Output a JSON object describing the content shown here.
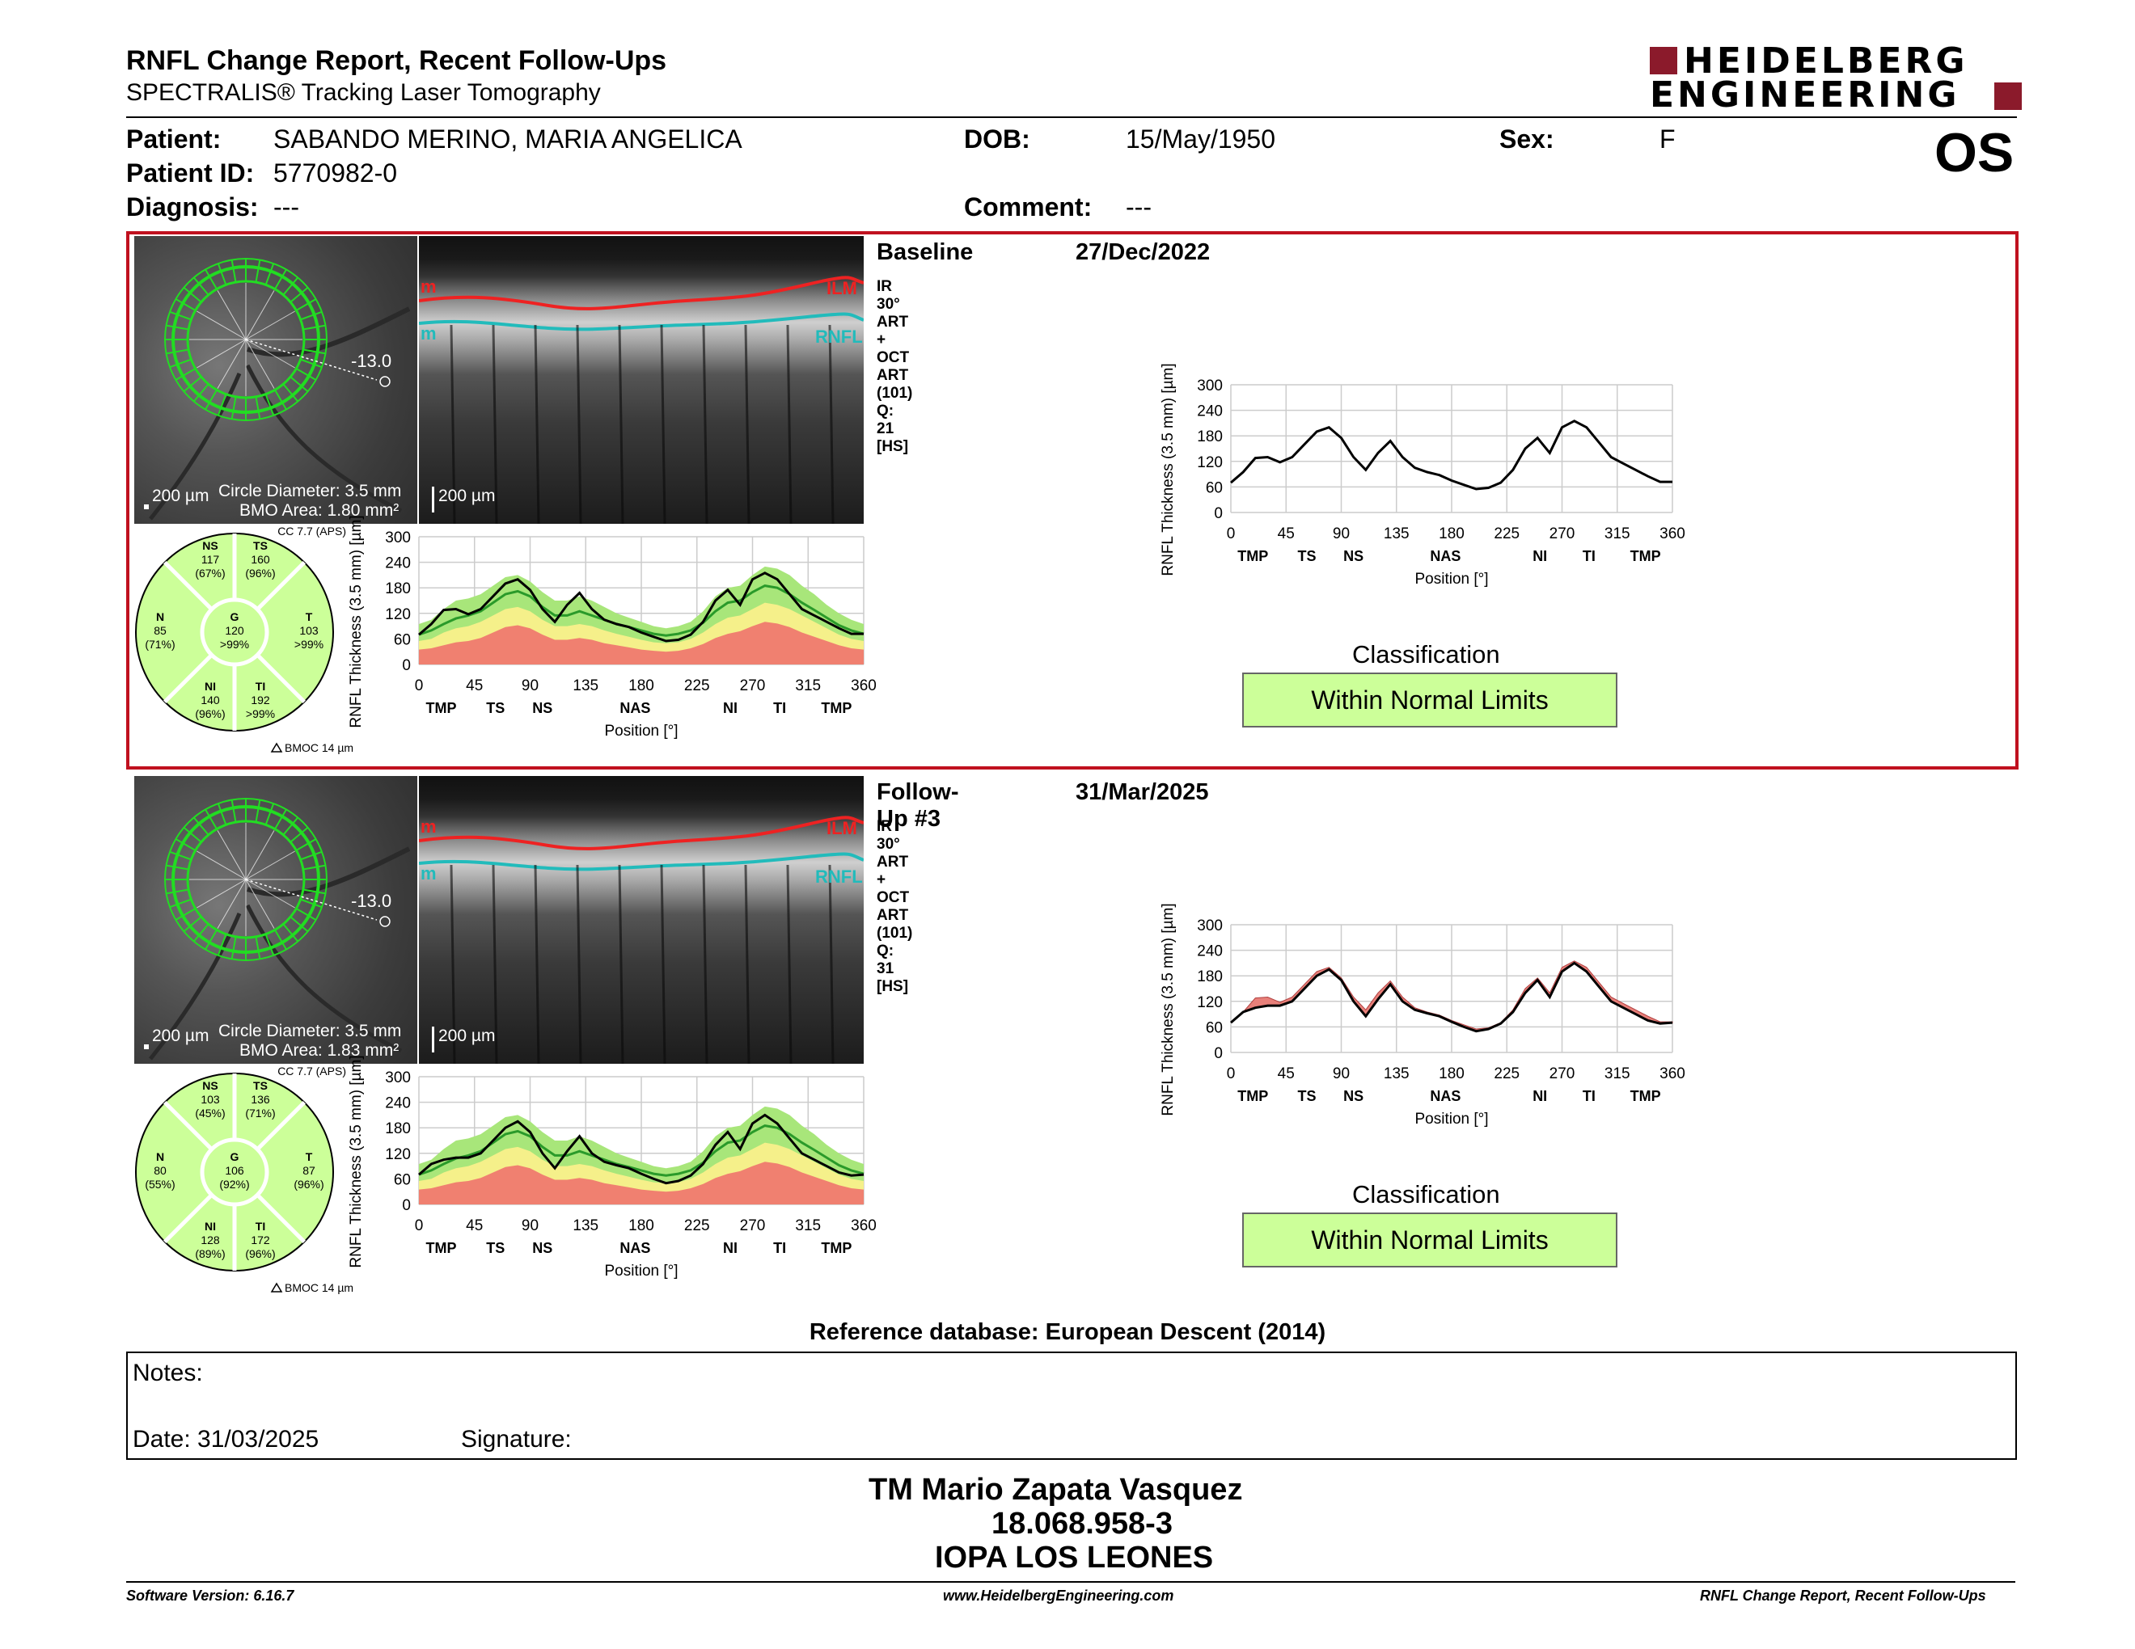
{
  "header": {
    "title": "RNFL Change Report, Recent Follow-Ups",
    "subtitle": "SPECTRALIS® Tracking Laser Tomography",
    "logo_line1": "HEIDELBERG",
    "logo_line2": "ENGINEERING",
    "eye": "OS"
  },
  "patient": {
    "patient_label": "Patient:",
    "patient_value": "SABANDO MERINO, MARIA ANGELICA",
    "dob_label": "DOB:",
    "dob_value": "15/May/1950",
    "sex_label": "Sex:",
    "sex_value": "F",
    "id_label": "Patient ID:",
    "id_value": "5770982-0",
    "diagnosis_label": "Diagnosis:",
    "diagnosis_value": "---",
    "comment_label": "Comment:",
    "comment_value": "---"
  },
  "sections": [
    {
      "label": "Baseline",
      "date": "27/Dec/2022",
      "scan_info": "IR 30° ART + OCT ART (101) Q: 21 [HS]",
      "angle": "-13.0",
      "scale": "200 µm",
      "oct_scale": "200 µm",
      "circle": "Circle Diameter: 3.5 mm",
      "bmo": "BMO Area: 1.80 mm²",
      "ilm": "ILM",
      "rnfl": "RNFL",
      "m1": "m",
      "m2": "m",
      "cc": "CC 7.7 (APS)",
      "bmoc": "BMOC 14 µm",
      "sectors": {
        "NS": {
          "name": "NS",
          "value": "117",
          "pct": "(67%)"
        },
        "TS": {
          "name": "TS",
          "value": "160",
          "pct": "(96%)"
        },
        "N": {
          "name": "N",
          "value": "85",
          "pct": "(71%)"
        },
        "G": {
          "name": "G",
          "value": "120",
          "pct": ">99%"
        },
        "T": {
          "name": "T",
          "value": "103",
          "pct": ">99%"
        },
        "NI": {
          "name": "NI",
          "value": "140",
          "pct": "(96%)"
        },
        "TI": {
          "name": "TI",
          "value": "192",
          "pct": ">99%"
        }
      },
      "classification_title": "Classification",
      "classification": "Within Normal Limits"
    },
    {
      "label": "Follow-Up #3",
      "date": "31/Mar/2025",
      "scan_info": "IR 30° ART + OCT ART (101) Q: 31 [HS]",
      "angle": "-13.0",
      "scale": "200 µm",
      "oct_scale": "200 µm",
      "circle": "Circle Diameter: 3.5 mm",
      "bmo": "BMO Area: 1.83 mm²",
      "ilm": "ILM",
      "rnfl": "RNFL",
      "m1": "m",
      "m2": "m",
      "cc": "CC 7.7 (APS)",
      "bmoc": "BMOC 14 µm",
      "sectors": {
        "NS": {
          "name": "NS",
          "value": "103",
          "pct": "(45%)"
        },
        "TS": {
          "name": "TS",
          "value": "136",
          "pct": "(71%)"
        },
        "N": {
          "name": "N",
          "value": "80",
          "pct": "(55%)"
        },
        "G": {
          "name": "G",
          "value": "106",
          "pct": "(92%)"
        },
        "T": {
          "name": "T",
          "value": "87",
          "pct": "(96%)"
        },
        "NI": {
          "name": "NI",
          "value": "128",
          "pct": "(89%)"
        },
        "TI": {
          "name": "TI",
          "value": "172",
          "pct": "(96%)"
        }
      },
      "classification_title": "Classification",
      "classification": "Within Normal Limits"
    }
  ],
  "chart_data": {
    "type": "line",
    "ylabel": "RNFL Thickness (3.5 mm) [µm]",
    "xlabel": "Position [°]",
    "xlim": [
      0,
      360
    ],
    "ylim": [
      0,
      300
    ],
    "x_ticks": [
      "0",
      "45",
      "90",
      "135",
      "180",
      "225",
      "270",
      "315",
      "360"
    ],
    "y_ticks": [
      "0",
      "60",
      "120",
      "180",
      "240",
      "300"
    ],
    "sector_labels": [
      "TMP",
      "TS",
      "NS",
      "NAS",
      "NI",
      "TI",
      "TMP"
    ],
    "sector_positions": [
      18,
      62,
      100,
      175,
      252,
      292,
      338
    ],
    "x": [
      0,
      10,
      20,
      30,
      40,
      50,
      60,
      70,
      80,
      90,
      100,
      110,
      120,
      130,
      140,
      150,
      160,
      170,
      180,
      190,
      200,
      210,
      220,
      230,
      240,
      250,
      260,
      270,
      280,
      290,
      300,
      310,
      320,
      330,
      340,
      350,
      360
    ],
    "series": [
      {
        "values": [
          70,
          95,
          128,
          130,
          118,
          130,
          160,
          190,
          200,
          175,
          130,
          100,
          140,
          168,
          130,
          105,
          95,
          88,
          75,
          65,
          55,
          58,
          70,
          100,
          150,
          175,
          140,
          200,
          215,
          200,
          165,
          130,
          115,
          100,
          85,
          72,
          72
        ]
      },
      {
        "values": [
          70,
          95,
          105,
          110,
          110,
          120,
          150,
          180,
          195,
          170,
          120,
          85,
          125,
          160,
          120,
          100,
          92,
          85,
          72,
          60,
          50,
          55,
          68,
          95,
          140,
          170,
          130,
          190,
          210,
          190,
          155,
          120,
          105,
          90,
          75,
          68,
          70
        ]
      }
    ],
    "normal_band_upper": [
      95,
      105,
      130,
      150,
      155,
      165,
      185,
      205,
      210,
      195,
      170,
      150,
      150,
      160,
      150,
      135,
      120,
      110,
      100,
      90,
      85,
      90,
      100,
      125,
      160,
      180,
      185,
      210,
      230,
      225,
      210,
      185,
      165,
      140,
      120,
      105,
      95
    ],
    "borderline_upper": [
      55,
      60,
      75,
      85,
      90,
      100,
      115,
      130,
      135,
      125,
      105,
      90,
      90,
      95,
      90,
      80,
      72,
      65,
      58,
      52,
      50,
      52,
      60,
      75,
      95,
      110,
      115,
      130,
      145,
      140,
      130,
      115,
      100,
      85,
      70,
      60,
      55
    ],
    "outside_upper": [
      35,
      38,
      45,
      52,
      55,
      62,
      75,
      88,
      92,
      85,
      70,
      58,
      58,
      62,
      58,
      50,
      45,
      40,
      35,
      32,
      30,
      32,
      38,
      48,
      62,
      72,
      78,
      90,
      100,
      96,
      88,
      75,
      65,
      55,
      45,
      38,
      35
    ],
    "normal_mean": [
      70,
      80,
      95,
      108,
      115,
      125,
      145,
      165,
      172,
      160,
      135,
      115,
      115,
      125,
      115,
      105,
      95,
      88,
      80,
      72,
      68,
      72,
      80,
      98,
      125,
      145,
      150,
      170,
      185,
      180,
      165,
      145,
      128,
      110,
      92,
      80,
      72
    ]
  },
  "reference_db": "Reference database: European Descent (2014)",
  "notes": {
    "notes_label": "Notes:",
    "date_label": "Date: 31/03/2025",
    "signature_label": "Signature:"
  },
  "signer": {
    "name": "TM Mario Zapata Vasquez",
    "id": "18.068.958-3",
    "org": "IOPA LOS LEONES"
  },
  "footer": {
    "left": "Software Version: 6.16.7",
    "center": "www.HeidelbergEngineering.com",
    "right": "RNFL Change Report, Recent Follow-Ups"
  },
  "colors": {
    "frame_red": "#c0111f",
    "logo_red": "#8b1a2b",
    "classification_green": "#ccff99",
    "normal_green": "#a8e67a",
    "borderline_yellow": "#f5f08a",
    "outside_red": "#f08070"
  }
}
